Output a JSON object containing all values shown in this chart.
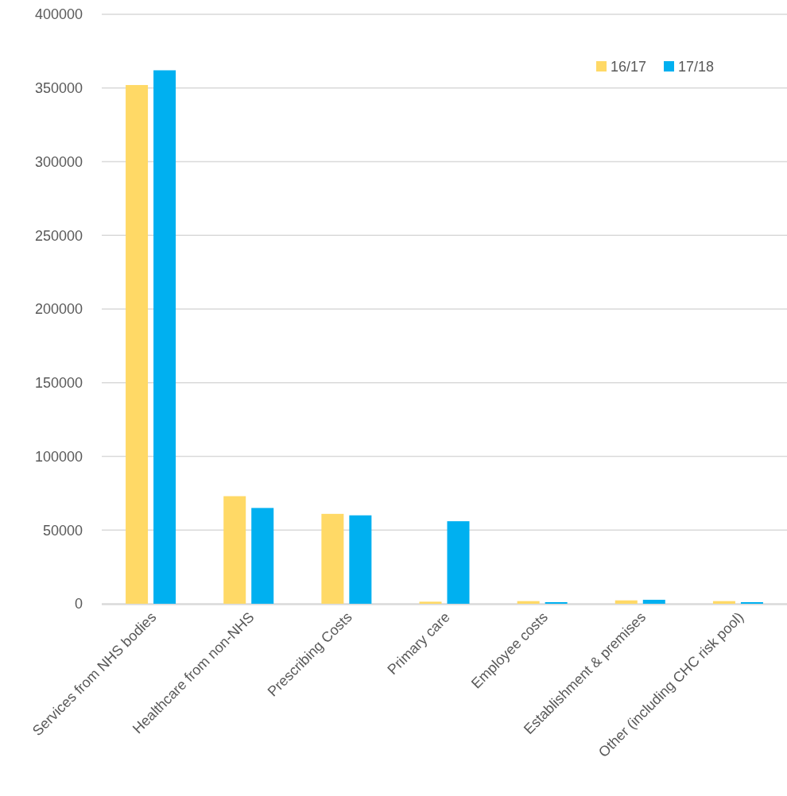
{
  "chart_data": {
    "type": "bar",
    "categories": [
      "Services from NHS bodies",
      "Healthcare from non-NHS",
      "Prescribing Costs",
      "Primary care",
      "Employee costs",
      "Establishment & premises",
      "Other (including CHC risk pool)"
    ],
    "series": [
      {
        "name": "16/17",
        "color": "#ffd966",
        "values": [
          352000,
          73000,
          61000,
          1400,
          1800,
          2300,
          1800
        ]
      },
      {
        "name": "17/18",
        "color": "#00b0f0",
        "values": [
          362000,
          65000,
          60000,
          56000,
          1100,
          2700,
          1100
        ]
      }
    ],
    "ylim": [
      0,
      400000
    ],
    "yticks": [
      0,
      50000,
      100000,
      150000,
      200000,
      250000,
      300000,
      350000,
      400000
    ],
    "grid": "y",
    "legend": "top right"
  }
}
